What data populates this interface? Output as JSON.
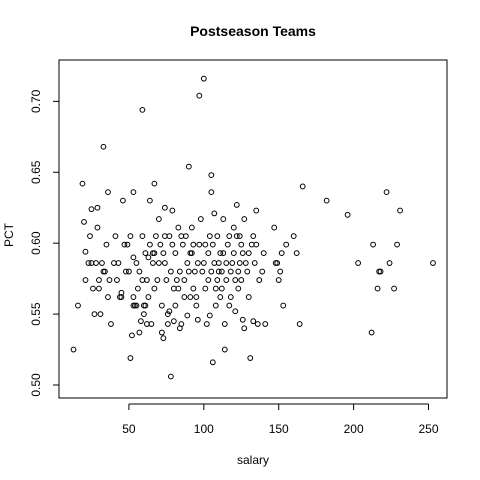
{
  "chart_data": {
    "type": "scatter",
    "title": "Postseason Teams",
    "xlabel": "salary",
    "ylabel": "PCT",
    "xlim": [
      10,
      255
    ],
    "ylim": [
      0.5,
      0.72
    ],
    "xticks": [
      50,
      100,
      150,
      200,
      250
    ],
    "yticks": [
      0.5,
      0.55,
      0.6,
      0.65,
      0.7
    ],
    "xtick_labels": [
      "50",
      "100",
      "150",
      "200",
      "250"
    ],
    "ytick_labels": [
      "0.50",
      "0.55",
      "0.60",
      "0.65",
      "0.70"
    ],
    "grid": false,
    "points": [
      [
        13,
        0.525
      ],
      [
        16,
        0.556
      ],
      [
        19,
        0.642
      ],
      [
        20,
        0.615
      ],
      [
        21,
        0.574
      ],
      [
        21,
        0.594
      ],
      [
        23,
        0.586
      ],
      [
        24,
        0.605
      ],
      [
        25,
        0.624
      ],
      [
        25,
        0.586
      ],
      [
        26,
        0.568
      ],
      [
        27,
        0.55
      ],
      [
        28,
        0.586
      ],
      [
        29,
        0.611
      ],
      [
        29,
        0.625
      ],
      [
        30,
        0.574
      ],
      [
        30,
        0.568
      ],
      [
        31,
        0.55
      ],
      [
        32,
        0.586
      ],
      [
        33,
        0.58
      ],
      [
        33,
        0.668
      ],
      [
        34,
        0.58
      ],
      [
        35,
        0.599
      ],
      [
        36,
        0.562
      ],
      [
        36,
        0.636
      ],
      [
        37,
        0.574
      ],
      [
        38,
        0.543
      ],
      [
        40,
        0.586
      ],
      [
        41,
        0.605
      ],
      [
        42,
        0.574
      ],
      [
        43,
        0.586
      ],
      [
        44,
        0.562
      ],
      [
        45,
        0.565
      ],
      [
        45,
        0.562
      ],
      [
        46,
        0.63
      ],
      [
        47,
        0.599
      ],
      [
        48,
        0.58
      ],
      [
        49,
        0.599
      ],
      [
        50,
        0.58
      ],
      [
        51,
        0.605
      ],
      [
        51,
        0.519
      ],
      [
        52,
        0.535
      ],
      [
        53,
        0.636
      ],
      [
        53,
        0.59
      ],
      [
        53,
        0.556
      ],
      [
        53,
        0.562
      ],
      [
        54,
        0.556
      ],
      [
        55,
        0.586
      ],
      [
        55,
        0.556
      ],
      [
        56,
        0.568
      ],
      [
        57,
        0.58
      ],
      [
        57,
        0.537
      ],
      [
        58,
        0.545
      ],
      [
        59,
        0.694
      ],
      [
        59,
        0.605
      ],
      [
        59,
        0.574
      ],
      [
        60,
        0.556
      ],
      [
        60,
        0.55
      ],
      [
        61,
        0.593
      ],
      [
        61,
        0.556
      ],
      [
        62,
        0.543
      ],
      [
        62,
        0.574
      ],
      [
        63,
        0.59
      ],
      [
        63,
        0.562
      ],
      [
        64,
        0.63
      ],
      [
        64,
        0.599
      ],
      [
        65,
        0.543
      ],
      [
        66,
        0.593
      ],
      [
        66,
        0.586
      ],
      [
        67,
        0.593
      ],
      [
        67,
        0.642
      ],
      [
        67,
        0.568
      ],
      [
        68,
        0.605
      ],
      [
        69,
        0.574
      ],
      [
        70,
        0.617
      ],
      [
        70,
        0.586
      ],
      [
        71,
        0.599
      ],
      [
        72,
        0.556
      ],
      [
        72,
        0.537
      ],
      [
        73,
        0.533
      ],
      [
        73,
        0.593
      ],
      [
        74,
        0.625
      ],
      [
        74,
        0.605
      ],
      [
        74,
        0.586
      ],
      [
        75,
        0.574
      ],
      [
        76,
        0.55
      ],
      [
        76,
        0.543
      ],
      [
        77,
        0.552
      ],
      [
        77,
        0.605
      ],
      [
        78,
        0.58
      ],
      [
        78,
        0.506
      ],
      [
        79,
        0.623
      ],
      [
        79,
        0.599
      ],
      [
        80,
        0.568
      ],
      [
        80,
        0.545
      ],
      [
        81,
        0.593
      ],
      [
        81,
        0.556
      ],
      [
        82,
        0.574
      ],
      [
        83,
        0.611
      ],
      [
        83,
        0.568
      ],
      [
        84,
        0.58
      ],
      [
        84,
        0.54
      ],
      [
        85,
        0.605
      ],
      [
        85,
        0.543
      ],
      [
        86,
        0.599
      ],
      [
        87,
        0.562
      ],
      [
        87,
        0.574
      ],
      [
        88,
        0.605
      ],
      [
        89,
        0.549
      ],
      [
        89,
        0.586
      ],
      [
        90,
        0.654
      ],
      [
        90,
        0.58
      ],
      [
        91,
        0.593
      ],
      [
        91,
        0.562
      ],
      [
        92,
        0.611
      ],
      [
        92,
        0.593
      ],
      [
        93,
        0.599
      ],
      [
        93,
        0.568
      ],
      [
        94,
        0.58
      ],
      [
        95,
        0.556
      ],
      [
        95,
        0.562
      ],
      [
        96,
        0.546
      ],
      [
        96,
        0.586
      ],
      [
        97,
        0.599
      ],
      [
        97,
        0.704
      ],
      [
        98,
        0.617
      ],
      [
        99,
        0.58
      ],
      [
        100,
        0.716
      ],
      [
        100,
        0.586
      ],
      [
        101,
        0.568
      ],
      [
        101,
        0.599
      ],
      [
        102,
        0.543
      ],
      [
        103,
        0.574
      ],
      [
        103,
        0.593
      ],
      [
        104,
        0.549
      ],
      [
        104,
        0.605
      ],
      [
        105,
        0.636
      ],
      [
        105,
        0.58
      ],
      [
        105,
        0.648
      ],
      [
        106,
        0.516
      ],
      [
        106,
        0.599
      ],
      [
        107,
        0.621
      ],
      [
        107,
        0.586
      ],
      [
        108,
        0.568
      ],
      [
        108,
        0.556
      ],
      [
        109,
        0.574
      ],
      [
        109,
        0.605
      ],
      [
        110,
        0.58
      ],
      [
        110,
        0.586
      ],
      [
        111,
        0.593
      ],
      [
        111,
        0.562
      ],
      [
        112,
        0.568
      ],
      [
        112,
        0.58
      ],
      [
        113,
        0.593
      ],
      [
        113,
        0.617
      ],
      [
        114,
        0.525
      ],
      [
        114,
        0.543
      ],
      [
        115,
        0.586
      ],
      [
        115,
        0.574
      ],
      [
        116,
        0.599
      ],
      [
        117,
        0.605
      ],
      [
        117,
        0.556
      ],
      [
        118,
        0.562
      ],
      [
        118,
        0.58
      ],
      [
        119,
        0.586
      ],
      [
        120,
        0.593
      ],
      [
        120,
        0.611
      ],
      [
        121,
        0.574
      ],
      [
        121,
        0.552
      ],
      [
        122,
        0.627
      ],
      [
        122,
        0.605
      ],
      [
        123,
        0.58
      ],
      [
        123,
        0.568
      ],
      [
        124,
        0.586
      ],
      [
        124,
        0.605
      ],
      [
        125,
        0.574
      ],
      [
        125,
        0.599
      ],
      [
        126,
        0.546
      ],
      [
        126,
        0.593
      ],
      [
        127,
        0.617
      ],
      [
        127,
        0.54
      ],
      [
        128,
        0.586
      ],
      [
        129,
        0.58
      ],
      [
        130,
        0.593
      ],
      [
        130,
        0.562
      ],
      [
        131,
        0.519
      ],
      [
        132,
        0.599
      ],
      [
        133,
        0.605
      ],
      [
        133,
        0.545
      ],
      [
        134,
        0.586
      ],
      [
        135,
        0.599
      ],
      [
        135,
        0.623
      ],
      [
        136,
        0.543
      ],
      [
        137,
        0.574
      ],
      [
        139,
        0.58
      ],
      [
        140,
        0.593
      ],
      [
        141,
        0.543
      ],
      [
        147,
        0.611
      ],
      [
        148,
        0.586
      ],
      [
        149,
        0.586
      ],
      [
        150,
        0.574
      ],
      [
        151,
        0.58
      ],
      [
        152,
        0.593
      ],
      [
        153,
        0.556
      ],
      [
        155,
        0.599
      ],
      [
        160,
        0.605
      ],
      [
        162,
        0.593
      ],
      [
        164,
        0.543
      ],
      [
        166,
        0.64
      ],
      [
        182,
        0.63
      ],
      [
        196,
        0.62
      ],
      [
        203,
        0.586
      ],
      [
        212,
        0.537
      ],
      [
        213,
        0.599
      ],
      [
        216,
        0.568
      ],
      [
        217,
        0.58
      ],
      [
        218,
        0.58
      ],
      [
        222,
        0.636
      ],
      [
        224,
        0.586
      ],
      [
        227,
        0.568
      ],
      [
        229,
        0.599
      ],
      [
        231,
        0.623
      ],
      [
        253,
        0.586
      ]
    ]
  }
}
